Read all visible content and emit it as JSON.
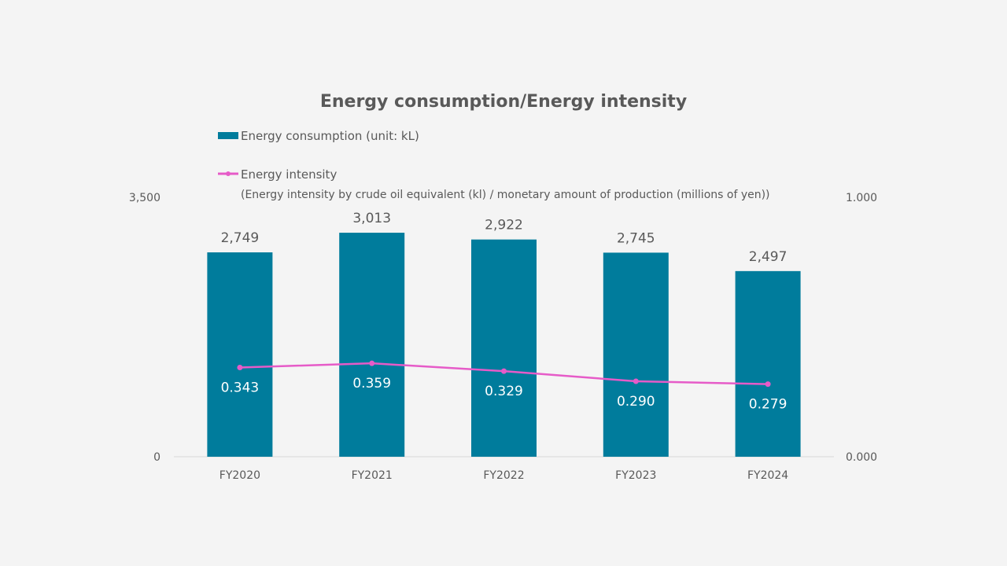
{
  "chart_data": {
    "type": "bar",
    "title": "Energy consumption/Energy intensity",
    "categories": [
      "FY2020",
      "FY2021",
      "FY2022",
      "FY2023",
      "FY2024"
    ],
    "series": [
      {
        "name": "Energy consumption (unit: kL)",
        "type": "bar",
        "axis": "left",
        "color": "#007c9c",
        "values": [
          2749,
          3013,
          2922,
          2745,
          2497
        ],
        "labels": [
          "2,749",
          "3,013",
          "2,922",
          "2,745",
          "2,497"
        ]
      },
      {
        "name": "Energy intensity",
        "note": "(Energy intensity by crude oil equivalent (kl) / monetary amount of production (millions of yen))",
        "type": "line",
        "axis": "right",
        "color": "#e65bc8",
        "values": [
          0.343,
          0.359,
          0.329,
          0.29,
          0.279
        ],
        "labels": [
          "0.343",
          "0.359",
          "0.329",
          "0.290",
          "0.279"
        ]
      }
    ],
    "y_left": {
      "range": [
        0,
        3500
      ],
      "ticks": [
        "0",
        "3,500"
      ]
    },
    "y_right": {
      "range": [
        0,
        1
      ],
      "ticks": [
        "0.000",
        "1.000"
      ]
    },
    "grid": false,
    "legend_position": "top"
  }
}
